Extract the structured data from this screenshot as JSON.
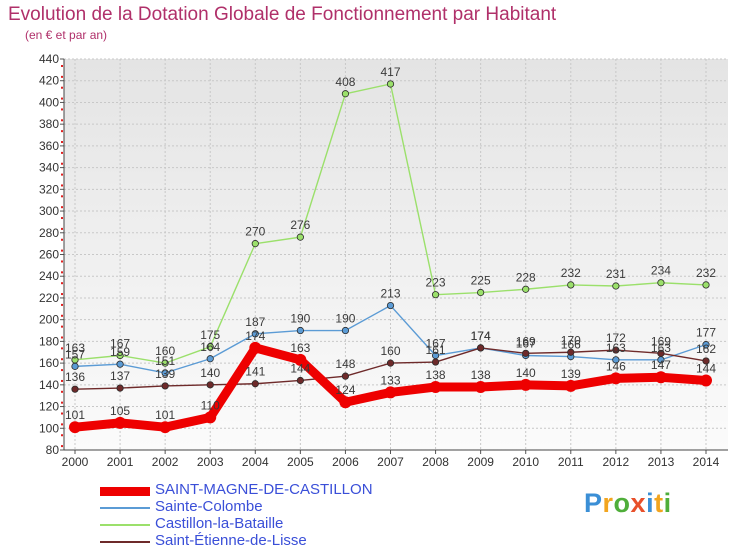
{
  "title": "Evolution de la Dotation Globale de Fonctionnement par Habitant",
  "subtitle": "(en € et par an)",
  "logo_text": "Proxiti",
  "chart_data": {
    "type": "line",
    "title": "Evolution de la Dotation Globale de Fonctionnement par Habitant",
    "subtitle": "(en € et par an)",
    "x": [
      "2000",
      "2001",
      "2002",
      "2003",
      "2004",
      "2005",
      "2006",
      "2007",
      "2008",
      "2009",
      "2010",
      "2011",
      "2012",
      "2013",
      "2014"
    ],
    "ylim": [
      80,
      440
    ],
    "yticks": [
      80,
      100,
      120,
      140,
      160,
      180,
      200,
      220,
      240,
      260,
      280,
      300,
      320,
      340,
      360,
      380,
      400,
      420,
      440
    ],
    "grid": true,
    "legend_position": "bottom-left",
    "series": [
      {
        "name": "SAINT-MAGNE-DE-CASTILLON",
        "color": "#ee0000",
        "values": [
          101,
          105,
          101,
          110,
          174,
          163,
          124,
          133,
          138,
          138,
          140,
          139,
          146,
          147,
          144
        ]
      },
      {
        "name": "Sainte-Colombe",
        "color": "#5b9bd5",
        "values": [
          157,
          159,
          151,
          164,
          187,
          190,
          190,
          213,
          167,
          174,
          167,
          166,
          163,
          163,
          177
        ]
      },
      {
        "name": "Castillon-la-Bataille",
        "color": "#9be06b",
        "values": [
          163,
          167,
          160,
          175,
          270,
          276,
          408,
          417,
          223,
          225,
          228,
          232,
          231,
          234,
          232
        ]
      },
      {
        "name": "Saint-Étienne-de-Lisse",
        "color": "#6e2a2a",
        "values": [
          136,
          137,
          139,
          140,
          141,
          144,
          148,
          160,
          161,
          174,
          169,
          170,
          172,
          169,
          162
        ]
      }
    ],
    "data_labels": {
      "SAINT-MAGNE-DE-CASTILLON": [
        "101",
        "105",
        "101",
        "110",
        "174",
        "163",
        "124",
        "133",
        "138",
        "138",
        "140",
        "139",
        "146",
        "147",
        "144"
      ],
      "Sainte-Colombe": [
        "157",
        "159",
        "151",
        "164",
        "187",
        "190",
        "190",
        "213",
        "167",
        "174",
        "167",
        "166",
        "163",
        "163",
        "177"
      ],
      "Castillon-la-Bataille": [
        "163",
        "167",
        "160",
        "175",
        "270",
        "276",
        "408",
        "417",
        "223",
        "225",
        "228",
        "232",
        "231",
        "234",
        "232"
      ],
      "Saint-Étienne-de-Lisse": [
        "136",
        "137",
        "139",
        "140",
        "141",
        "144",
        "148",
        "160",
        "161",
        "174",
        "169",
        "170",
        "172",
        "169",
        "162"
      ]
    }
  }
}
